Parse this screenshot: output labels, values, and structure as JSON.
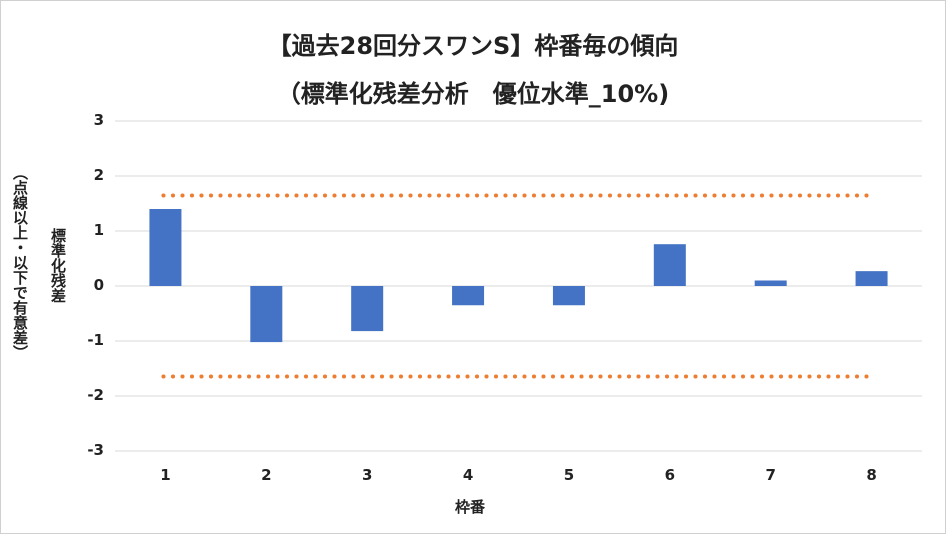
{
  "chart_data": {
    "type": "bar",
    "title": "【過去28回分スワンS】枠番毎の傾向",
    "subtitle": "（標準化残差分析　優位水準_10%)",
    "xlabel": "枠番",
    "ylabel": "標準化残差",
    "ylabel_note": "（点線以上・以下で有意差）",
    "categories": [
      "1",
      "2",
      "3",
      "4",
      "5",
      "6",
      "7",
      "8"
    ],
    "values": [
      1.4,
      -1.02,
      -0.82,
      -0.35,
      -0.35,
      0.76,
      0.1,
      0.27
    ],
    "ylim": [
      -3,
      3
    ],
    "yticks": [
      "3",
      "2",
      "1",
      "0",
      "-1",
      "-2",
      "-3"
    ],
    "threshold_upper": 1.645,
    "threshold_lower": -1.645,
    "grid": true,
    "legend": "none",
    "colors": {
      "bar": "#4472c4",
      "threshold": "#ed7d31",
      "grid": "#d9d9d9"
    }
  }
}
